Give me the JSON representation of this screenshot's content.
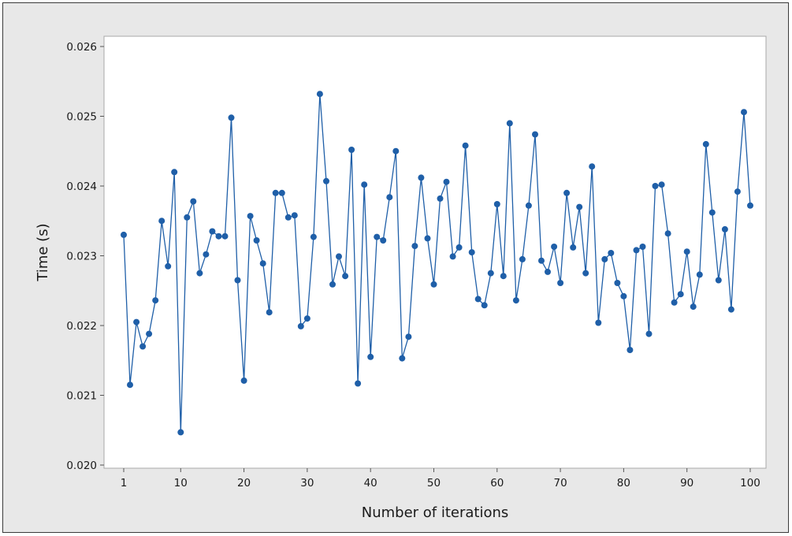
{
  "chart_data": {
    "type": "line",
    "title": "",
    "xlabel": "Number of iterations",
    "ylabel": "Time (s)",
    "xlim": [
      1,
      100
    ],
    "ylim": [
      0.02,
      0.026
    ],
    "x_ticks": [
      1,
      10,
      20,
      30,
      40,
      50,
      60,
      70,
      80,
      90,
      100
    ],
    "y_ticks": [
      "0.020",
      "0.021",
      "0.022",
      "0.023",
      "0.024",
      "0.025",
      "0.026"
    ],
    "grid": false,
    "legend": "none",
    "colors": {
      "series": "#1f5fa8",
      "frame_background": "#e8e8e8",
      "plot_background": "#ffffff"
    },
    "series": [
      {
        "x": [
          1,
          2,
          3,
          4,
          5,
          6,
          7,
          8,
          9,
          10,
          11,
          12,
          13,
          14,
          15,
          16,
          17,
          18,
          19,
          20,
          21,
          22,
          23,
          24,
          25,
          26,
          27,
          28,
          29,
          30,
          31,
          32,
          33,
          34,
          35,
          36,
          37,
          38,
          39,
          40,
          41,
          42,
          43,
          44,
          45,
          46,
          47,
          48,
          49,
          50,
          51,
          52,
          53,
          54,
          55,
          56,
          57,
          58,
          59,
          60,
          61,
          62,
          63,
          64,
          65,
          66,
          67,
          68,
          69,
          70,
          71,
          72,
          73,
          74,
          75,
          76,
          77,
          78,
          79,
          80,
          81,
          82,
          83,
          84,
          85,
          86,
          87,
          88,
          89,
          90,
          91,
          92,
          93,
          94,
          95,
          96,
          97,
          98,
          99,
          100
        ],
        "values": [
          0.0233,
          0.02115,
          0.02205,
          0.0217,
          0.02188,
          0.02236,
          0.0235,
          0.02285,
          0.0242,
          0.02047,
          0.02355,
          0.02378,
          0.02275,
          0.02302,
          0.02335,
          0.02328,
          0.02328,
          0.02498,
          0.02265,
          0.02121,
          0.02357,
          0.02322,
          0.02289,
          0.02219,
          0.0239,
          0.0239,
          0.02355,
          0.02358,
          0.02199,
          0.0221,
          0.02327,
          0.02532,
          0.02407,
          0.02259,
          0.02299,
          0.02271,
          0.02452,
          0.02117,
          0.02402,
          0.02155,
          0.02327,
          0.02322,
          0.02384,
          0.0245,
          0.02153,
          0.02184,
          0.02314,
          0.02412,
          0.02325,
          0.02259,
          0.02382,
          0.02406,
          0.02299,
          0.02312,
          0.02458,
          0.02305,
          0.02238,
          0.02229,
          0.02275,
          0.02374,
          0.02271,
          0.0249,
          0.02236,
          0.02295,
          0.02372,
          0.02474,
          0.02293,
          0.02277,
          0.02313,
          0.02261,
          0.0239,
          0.02312,
          0.0237,
          0.02275,
          0.02428,
          0.02204,
          0.02295,
          0.02304,
          0.02261,
          0.02242,
          0.02165,
          0.02308,
          0.02313,
          0.02188,
          0.024,
          0.02402,
          0.02332,
          0.02233,
          0.02245,
          0.02306,
          0.02227,
          0.02273,
          0.0246,
          0.02362,
          0.02265,
          0.02338,
          0.02223,
          0.02392,
          0.02506,
          0.02372
        ]
      }
    ]
  }
}
